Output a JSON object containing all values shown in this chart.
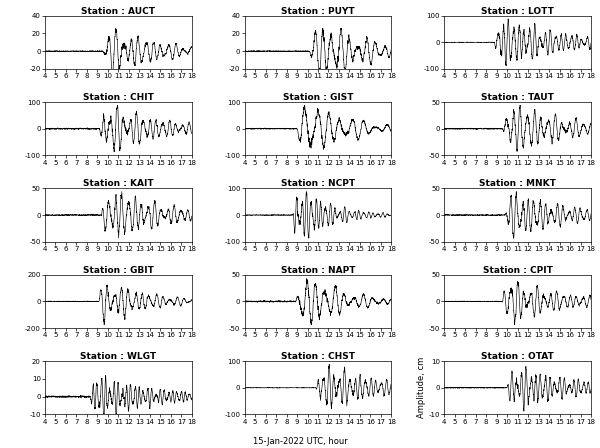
{
  "stations": [
    {
      "name": "AUCT",
      "ylim": [
        -20,
        40
      ],
      "yticks": [
        -20,
        0,
        20,
        40
      ],
      "row": 0,
      "col": 0
    },
    {
      "name": "PUYT",
      "ylim": [
        -20,
        40
      ],
      "yticks": [
        -20,
        0,
        20,
        40
      ],
      "row": 0,
      "col": 1
    },
    {
      "name": "LOTT",
      "ylim": [
        -100,
        100
      ],
      "yticks": [
        -100,
        0,
        100
      ],
      "row": 0,
      "col": 2
    },
    {
      "name": "CHIT",
      "ylim": [
        -100,
        100
      ],
      "yticks": [
        -100,
        0,
        100
      ],
      "row": 1,
      "col": 0
    },
    {
      "name": "GIST",
      "ylim": [
        -100,
        100
      ],
      "yticks": [
        -100,
        0,
        100
      ],
      "row": 1,
      "col": 1
    },
    {
      "name": "TAUT",
      "ylim": [
        -50,
        50
      ],
      "yticks": [
        -50,
        0,
        50
      ],
      "row": 1,
      "col": 2
    },
    {
      "name": "KAIT",
      "ylim": [
        -50,
        50
      ],
      "yticks": [
        -50,
        0,
        50
      ],
      "row": 2,
      "col": 0
    },
    {
      "name": "NCPT",
      "ylim": [
        -100,
        100
      ],
      "yticks": [
        -100,
        0,
        100
      ],
      "row": 2,
      "col": 1
    },
    {
      "name": "MNKT",
      "ylim": [
        -50,
        50
      ],
      "yticks": [
        -50,
        0,
        50
      ],
      "row": 2,
      "col": 2
    },
    {
      "name": "GBIT",
      "ylim": [
        -200,
        200
      ],
      "yticks": [
        -200,
        0,
        200
      ],
      "row": 3,
      "col": 0
    },
    {
      "name": "NAPT",
      "ylim": [
        -50,
        50
      ],
      "yticks": [
        -50,
        0,
        50
      ],
      "row": 3,
      "col": 1
    },
    {
      "name": "CPIT",
      "ylim": [
        -50,
        50
      ],
      "yticks": [
        -50,
        0,
        50
      ],
      "row": 3,
      "col": 2
    },
    {
      "name": "WLGT",
      "ylim": [
        -10,
        20
      ],
      "yticks": [
        -10,
        0,
        10,
        20
      ],
      "row": 4,
      "col": 0
    },
    {
      "name": "CHST",
      "ylim": [
        -100,
        100
      ],
      "yticks": [
        -100,
        0,
        100
      ],
      "row": 4,
      "col": 1
    },
    {
      "name": "OTAT",
      "ylim": [
        -10,
        10
      ],
      "yticks": [
        -10,
        0,
        10
      ],
      "row": 4,
      "col": 2
    }
  ],
  "xlim": [
    4,
    18
  ],
  "xticks": [
    4,
    5,
    6,
    7,
    8,
    9,
    10,
    11,
    12,
    13,
    14,
    15,
    16,
    17,
    18
  ],
  "xlabel": "15-Jan-2022 UTC, hour",
  "ylabel_last": "Amplitude, cm",
  "title_fontsize": 6.5,
  "tick_fontsize": 5,
  "label_fontsize": 6,
  "linewidth": 0.45,
  "background_color": "#ffffff",
  "line_color": "#000000"
}
